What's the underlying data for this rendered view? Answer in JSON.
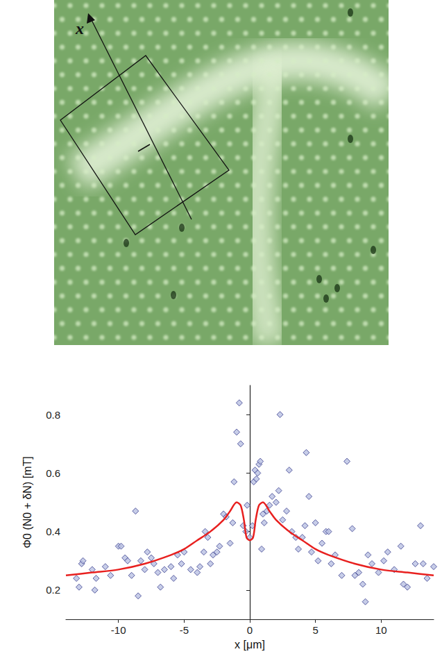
{
  "micrograph": {
    "arrow_label": "x"
  },
  "chart_data": {
    "type": "scatter",
    "xlabel": "x [μm]",
    "ylabel": "Φ0 (N0 + δN) [mT]",
    "xlim": [
      -14,
      14
    ],
    "xticks": [
      -10,
      -5,
      0,
      5,
      10
    ],
    "ylim": [
      0.1,
      0.9
    ],
    "yticks": [
      0.2,
      0.4,
      0.6,
      0.8
    ],
    "grid": false,
    "series": [
      {
        "type": "scatter",
        "marker": "diamond",
        "color": "#3a3f8f",
        "x": [
          -13.2,
          -13,
          -12.8,
          -12.7,
          -12,
          -11.8,
          -11.7,
          -11,
          -10.6,
          -10,
          -9.8,
          -9.5,
          -9.3,
          -9,
          -8.7,
          -8.5,
          -8.3,
          -8,
          -7.8,
          -7.5,
          -7.3,
          -7,
          -6.8,
          -6.5,
          -6,
          -5.8,
          -5.5,
          -5.2,
          -5,
          -4.5,
          -4,
          -3.8,
          -3.5,
          -3.4,
          -3.2,
          -3,
          -2.8,
          -2.5,
          -2.3,
          -2,
          -1.8,
          -1.5,
          -1.3,
          -1.2,
          -1,
          -0.8,
          -0.7,
          -0.5,
          -0.3,
          -0.2,
          0,
          0.2,
          0.3,
          0.4,
          0.5,
          0.6,
          0.7,
          0.8,
          0.9,
          1,
          1.1,
          1.3,
          1.5,
          1.7,
          2,
          2.2,
          2.3,
          2.5,
          2.8,
          3,
          3.2,
          3.5,
          3.7,
          4,
          4.2,
          4.3,
          4.5,
          4.7,
          5,
          5.2,
          5.5,
          5.8,
          6,
          6.2,
          6.5,
          7,
          7.4,
          7.8,
          8,
          8.3,
          8.6,
          8.8,
          9,
          9.3,
          9.8,
          10.2,
          10.5,
          11,
          11.5,
          11.7,
          12,
          12.6,
          13,
          13.2,
          13.5,
          14
        ],
        "values": [
          0.24,
          0.21,
          0.29,
          0.3,
          0.27,
          0.2,
          0.24,
          0.28,
          0.25,
          0.35,
          0.35,
          0.31,
          0.3,
          0.25,
          0.47,
          0.18,
          0.3,
          0.27,
          0.33,
          0.31,
          0.29,
          0.26,
          0.21,
          0.27,
          0.28,
          0.24,
          0.32,
          0.29,
          0.33,
          0.27,
          0.26,
          0.28,
          0.33,
          0.4,
          0.38,
          0.29,
          0.32,
          0.33,
          0.35,
          0.46,
          0.45,
          0.36,
          0.43,
          0.57,
          0.74,
          0.84,
          0.7,
          0.42,
          0.4,
          0.49,
          0.38,
          0.42,
          0.57,
          0.61,
          0.58,
          0.6,
          0.63,
          0.64,
          0.34,
          0.46,
          0.43,
          0.47,
          0.49,
          0.52,
          0.5,
          0.54,
          0.8,
          0.44,
          0.47,
          0.61,
          0.4,
          0.38,
          0.34,
          0.38,
          0.42,
          0.67,
          0.52,
          0.33,
          0.43,
          0.3,
          0.36,
          0.4,
          0.4,
          0.29,
          0.32,
          0.25,
          0.64,
          0.41,
          0.25,
          0.26,
          0.22,
          0.16,
          0.32,
          0.29,
          0.26,
          0.3,
          0.33,
          0.27,
          0.35,
          0.22,
          0.21,
          0.29,
          0.42,
          0.29,
          0.24,
          0.28
        ]
      },
      {
        "type": "line",
        "line_style": "solid",
        "color": "#e8201f",
        "x": [
          -14,
          -12,
          -10,
          -8,
          -6,
          -5,
          -4,
          -3,
          -2,
          -1.5,
          -1,
          -0.7,
          -0.45,
          -0.25,
          0,
          0.25,
          0.45,
          0.7,
          1,
          1.5,
          2,
          3,
          4,
          5,
          6,
          8,
          10,
          12,
          14
        ],
        "values": [
          0.25,
          0.26,
          0.27,
          0.29,
          0.32,
          0.34,
          0.37,
          0.4,
          0.44,
          0.47,
          0.5,
          0.49,
          0.44,
          0.38,
          0.37,
          0.38,
          0.44,
          0.49,
          0.5,
          0.47,
          0.44,
          0.4,
          0.37,
          0.34,
          0.32,
          0.29,
          0.27,
          0.26,
          0.25
        ]
      }
    ]
  }
}
